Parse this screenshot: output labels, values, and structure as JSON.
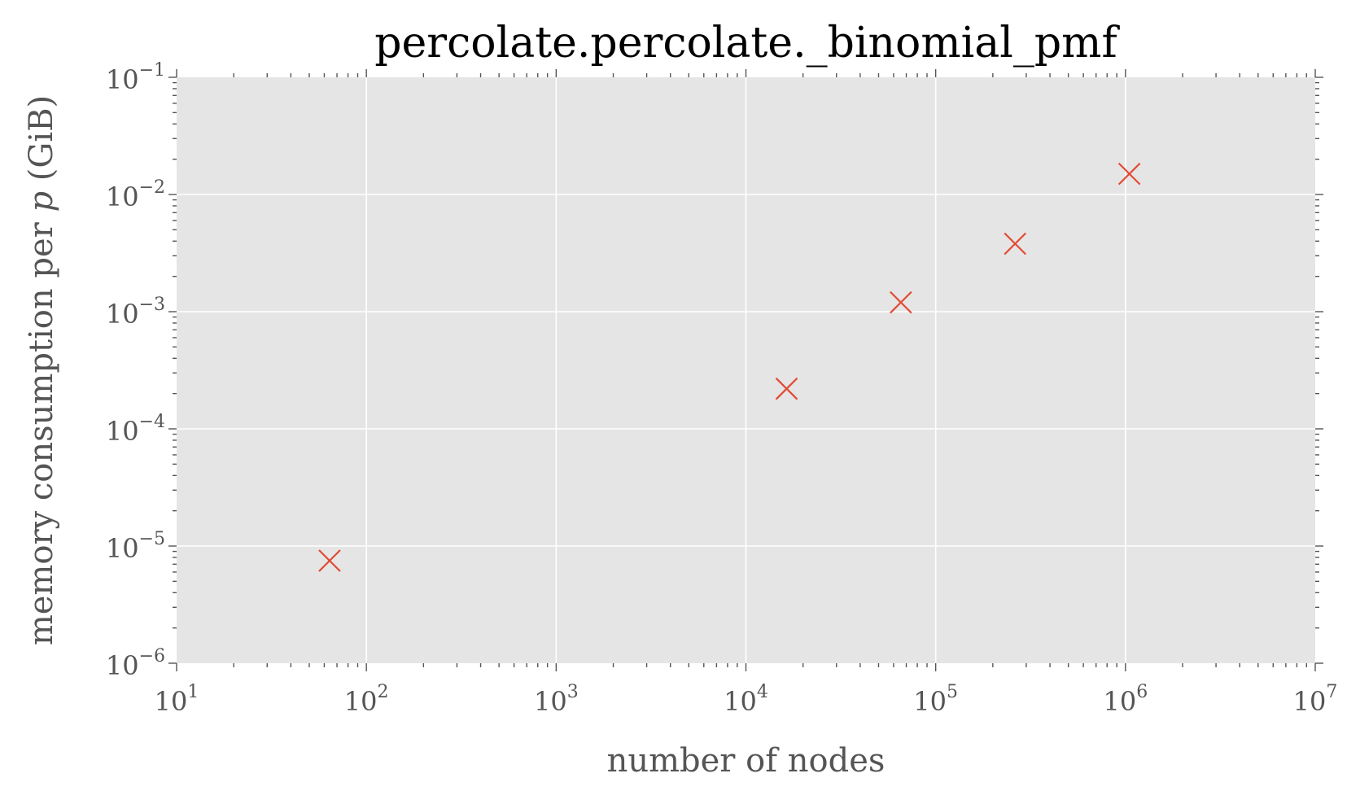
{
  "chart_data": {
    "type": "scatter",
    "title": "percolate.percolate._binomial_pmf",
    "xlabel": "number of nodes",
    "ylabel": {
      "prefix": "memory consumption per ",
      "variable": "p",
      "suffix": " (GiB)"
    },
    "x_scale": "log",
    "y_scale": "log",
    "xlim": [
      10,
      10000000
    ],
    "ylim": [
      1e-06,
      0.1
    ],
    "x_ticks": [
      {
        "base": "10",
        "exp": "1",
        "value": 10
      },
      {
        "base": "10",
        "exp": "2",
        "value": 100
      },
      {
        "base": "10",
        "exp": "3",
        "value": 1000
      },
      {
        "base": "10",
        "exp": "4",
        "value": 10000
      },
      {
        "base": "10",
        "exp": "5",
        "value": 100000
      },
      {
        "base": "10",
        "exp": "6",
        "value": 1000000
      },
      {
        "base": "10",
        "exp": "7",
        "value": 10000000
      }
    ],
    "y_ticks": [
      {
        "base": "10",
        "exp": "−6",
        "value": 1e-06
      },
      {
        "base": "10",
        "exp": "−5",
        "value": 1e-05
      },
      {
        "base": "10",
        "exp": "−4",
        "value": 0.0001
      },
      {
        "base": "10",
        "exp": "−3",
        "value": 0.001
      },
      {
        "base": "10",
        "exp": "−2",
        "value": 0.01
      },
      {
        "base": "10",
        "exp": "−1",
        "value": 0.1
      }
    ],
    "grid": true,
    "marker": "x",
    "marker_color": "#E24A33",
    "background_color": "#E5E5E5",
    "grid_color": "#FFFFFF",
    "points": [
      {
        "x": 64,
        "y": 7.5e-06
      },
      {
        "x": 16384,
        "y": 0.00022
      },
      {
        "x": 65536,
        "y": 0.0012
      },
      {
        "x": 262144,
        "y": 0.0038
      },
      {
        "x": 1048576,
        "y": 0.015
      }
    ]
  }
}
